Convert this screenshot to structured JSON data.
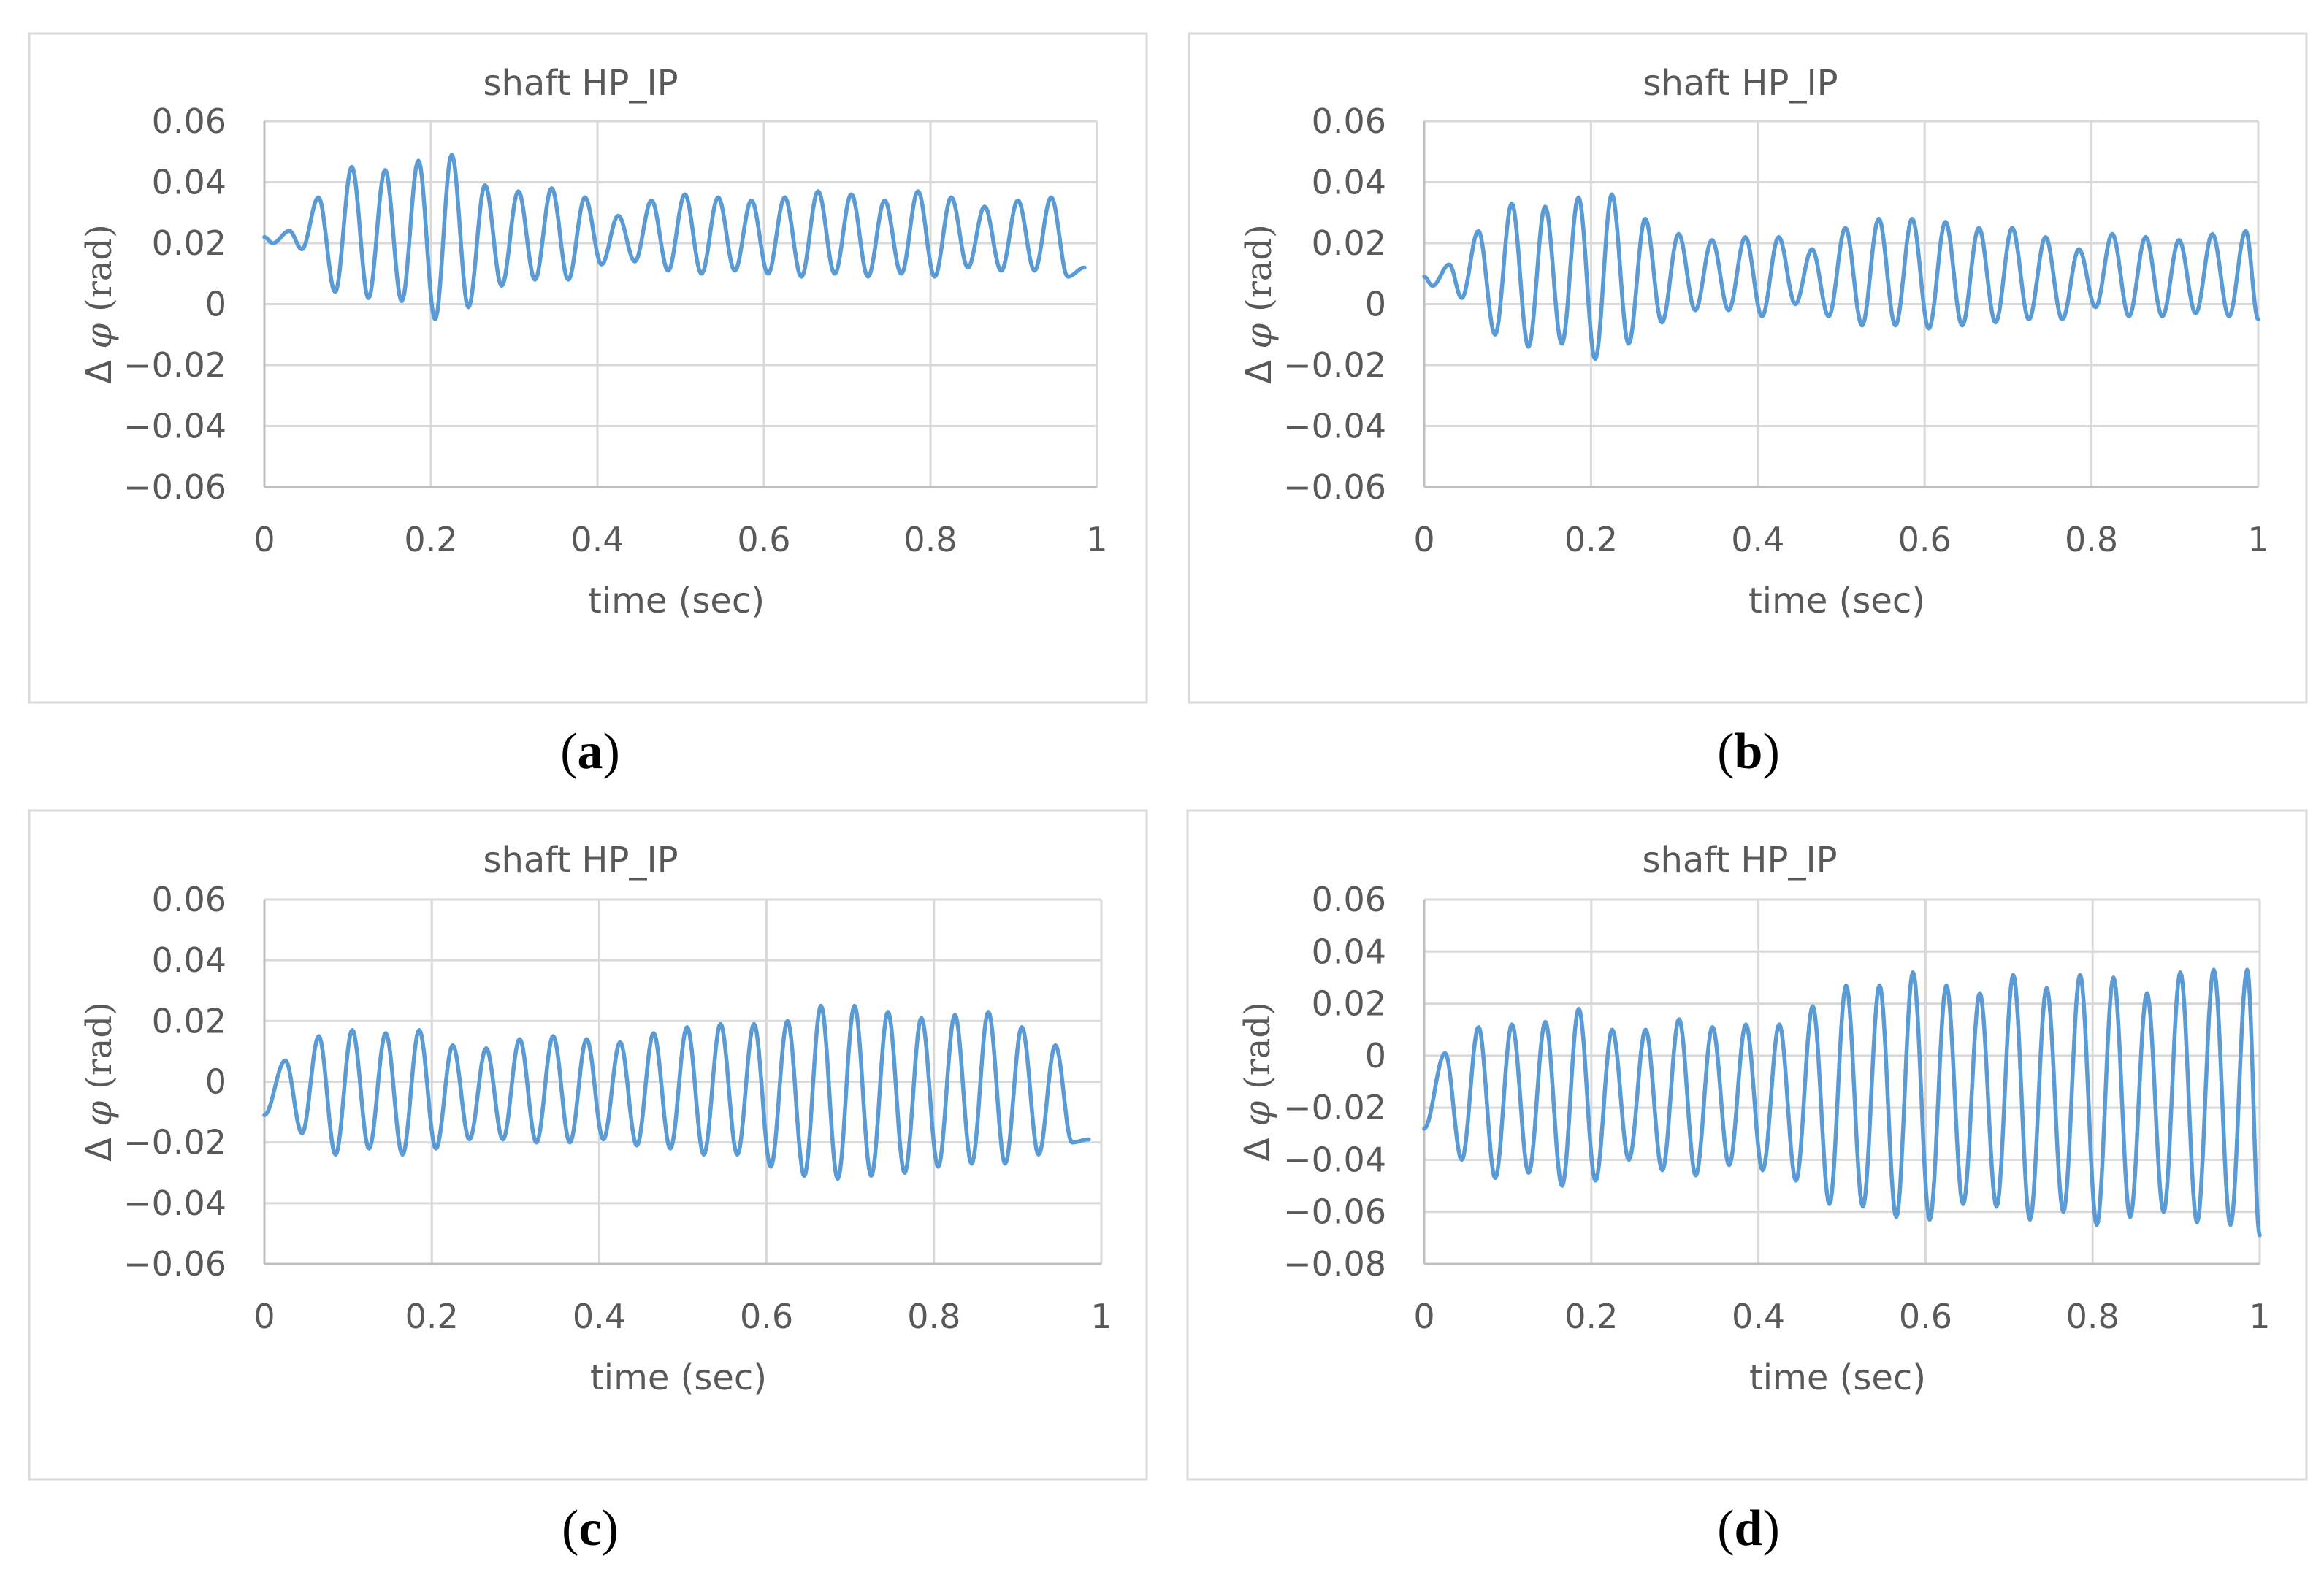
{
  "figure": {
    "colors": {
      "series": "#5b9bd5",
      "grid": "#d9d9d9",
      "text": "#595959",
      "frame": "#d9d9d9"
    }
  },
  "chart_data": [
    {
      "id": "a",
      "type": "line",
      "title": "shaft HP_IP",
      "xlabel": "time (sec)",
      "ylabel": {
        "delta": "Δ",
        "symbol": "φ",
        "unit": "(rad)"
      },
      "caption": {
        "open": "(",
        "letter": "a",
        "close": ")"
      },
      "xlim": [
        0,
        1
      ],
      "ylim": [
        -0.06,
        0.06
      ],
      "x_ticks": [
        0,
        0.2,
        0.4,
        0.6,
        0.8,
        1
      ],
      "x_tick_labels": [
        "0",
        "0.2",
        "0.4",
        "0.6",
        "0.8",
        "1"
      ],
      "y_ticks": [
        0.06,
        0.04,
        0.02,
        0,
        -0.02,
        -0.04,
        -0.06
      ],
      "y_tick_labels": [
        "0.06",
        "0.04",
        "0.02",
        "0",
        "−0.02",
        "−0.04",
        "−0.06"
      ],
      "series": [
        {
          "name": "Δφ HP_IP",
          "t_extrema": [
            0,
            0.01,
            0.03,
            0.045,
            0.065,
            0.085,
            0.105,
            0.125,
            0.145,
            0.165,
            0.185,
            0.205,
            0.225,
            0.245,
            0.265,
            0.285,
            0.305,
            0.325,
            0.345,
            0.365,
            0.385,
            0.405,
            0.425,
            0.445,
            0.465,
            0.485,
            0.505,
            0.525,
            0.545,
            0.565,
            0.585,
            0.605,
            0.625,
            0.645,
            0.665,
            0.685,
            0.705,
            0.725,
            0.745,
            0.765,
            0.785,
            0.805,
            0.825,
            0.845,
            0.865,
            0.885,
            0.905,
            0.925,
            0.945,
            0.965,
            0.985,
            1.0
          ],
          "y_extrema": [
            0.022,
            0.02,
            0.024,
            0.018,
            0.035,
            0.004,
            0.045,
            0.002,
            0.044,
            0.001,
            0.047,
            -0.005,
            0.049,
            -0.001,
            0.039,
            0.006,
            0.037,
            0.008,
            0.038,
            0.008,
            0.035,
            0.013,
            0.029,
            0.014,
            0.034,
            0.011,
            0.036,
            0.01,
            0.035,
            0.011,
            0.034,
            0.01,
            0.035,
            0.009,
            0.037,
            0.01,
            0.036,
            0.009,
            0.034,
            0.01,
            0.037,
            0.009,
            0.035,
            0.012,
            0.032,
            0.011,
            0.034,
            0.011,
            0.035,
            0.009,
            0.012
          ]
        }
      ]
    },
    {
      "id": "b",
      "type": "line",
      "title": "shaft HP_IP",
      "xlabel": "time (sec)",
      "ylabel": {
        "delta": "Δ",
        "symbol": "φ",
        "unit": "(rad)"
      },
      "caption": {
        "open": "(",
        "letter": "b",
        "close": ")"
      },
      "xlim": [
        0,
        1
      ],
      "ylim": [
        -0.06,
        0.06
      ],
      "x_ticks": [
        0,
        0.2,
        0.4,
        0.6,
        0.8,
        1
      ],
      "x_tick_labels": [
        "0",
        "0.2",
        "0.4",
        "0.6",
        "0.8",
        "1"
      ],
      "y_ticks": [
        0.06,
        0.04,
        0.02,
        0,
        -0.02,
        -0.04,
        -0.06
      ],
      "y_tick_labels": [
        "0.06",
        "0.04",
        "0.02",
        "0",
        "−0.02",
        "−0.04",
        "−0.06"
      ],
      "series": [
        {
          "name": "Δφ HP_IP",
          "t_extrema": [
            0,
            0.01,
            0.03,
            0.045,
            0.065,
            0.085,
            0.105,
            0.125,
            0.145,
            0.165,
            0.185,
            0.205,
            0.225,
            0.245,
            0.265,
            0.285,
            0.305,
            0.325,
            0.345,
            0.365,
            0.385,
            0.405,
            0.425,
            0.445,
            0.465,
            0.485,
            0.505,
            0.525,
            0.545,
            0.565,
            0.585,
            0.605,
            0.625,
            0.645,
            0.665,
            0.685,
            0.705,
            0.725,
            0.745,
            0.765,
            0.785,
            0.805,
            0.825,
            0.845,
            0.865,
            0.885,
            0.905,
            0.925,
            0.945,
            0.965,
            0.985,
            1.0
          ],
          "y_extrema": [
            0.009,
            0.006,
            0.013,
            0.002,
            0.024,
            -0.01,
            0.033,
            -0.014,
            0.032,
            -0.013,
            0.035,
            -0.018,
            0.036,
            -0.013,
            0.028,
            -0.006,
            0.023,
            -0.002,
            0.021,
            -0.002,
            0.022,
            -0.004,
            0.022,
            0.0,
            0.018,
            -0.004,
            0.025,
            -0.007,
            0.028,
            -0.007,
            0.028,
            -0.008,
            0.027,
            -0.007,
            0.025,
            -0.006,
            0.025,
            -0.005,
            0.022,
            -0.005,
            0.018,
            -0.001,
            0.023,
            -0.004,
            0.022,
            -0.004,
            0.021,
            -0.003,
            0.023,
            -0.004,
            0.024,
            -0.005
          ]
        }
      ]
    },
    {
      "id": "c",
      "type": "line",
      "title": "shaft HP_IP",
      "xlabel": "time (sec)",
      "ylabel": {
        "delta": "Δ",
        "symbol": "φ",
        "unit": "(rad)"
      },
      "caption": {
        "open": "(",
        "letter": "c",
        "close": ")"
      },
      "xlim": [
        0,
        1
      ],
      "ylim": [
        -0.06,
        0.06
      ],
      "x_ticks": [
        0,
        0.2,
        0.4,
        0.6,
        0.8,
        1
      ],
      "x_tick_labels": [
        "0",
        "0.2",
        "0.4",
        "0.6",
        "0.8",
        "1"
      ],
      "y_ticks": [
        0.06,
        0.04,
        0.02,
        0,
        -0.02,
        -0.04,
        -0.06
      ],
      "y_tick_labels": [
        "0.06",
        "0.04",
        "0.02",
        "0",
        "−0.02",
        "−0.04",
        "−0.06"
      ],
      "series": [
        {
          "name": "Δφ HP_IP",
          "t_extrema": [
            0,
            0.025,
            0.045,
            0.065,
            0.085,
            0.105,
            0.125,
            0.145,
            0.165,
            0.185,
            0.205,
            0.225,
            0.245,
            0.265,
            0.285,
            0.305,
            0.325,
            0.345,
            0.365,
            0.385,
            0.405,
            0.425,
            0.445,
            0.465,
            0.485,
            0.505,
            0.525,
            0.545,
            0.565,
            0.585,
            0.605,
            0.625,
            0.645,
            0.665,
            0.685,
            0.705,
            0.725,
            0.745,
            0.765,
            0.785,
            0.805,
            0.825,
            0.845,
            0.865,
            0.885,
            0.905,
            0.925,
            0.945,
            0.965,
            0.985,
            1.0
          ],
          "y_extrema": [
            -0.011,
            0.007,
            -0.017,
            0.015,
            -0.024,
            0.017,
            -0.022,
            0.016,
            -0.024,
            0.017,
            -0.022,
            0.012,
            -0.019,
            0.011,
            -0.019,
            0.014,
            -0.02,
            0.015,
            -0.02,
            0.014,
            -0.019,
            0.013,
            -0.021,
            0.016,
            -0.022,
            0.018,
            -0.024,
            0.019,
            -0.024,
            0.019,
            -0.028,
            0.02,
            -0.031,
            0.025,
            -0.032,
            0.025,
            -0.031,
            0.023,
            -0.03,
            0.021,
            -0.028,
            0.022,
            -0.027,
            0.023,
            -0.027,
            0.018,
            -0.024,
            0.012,
            -0.02,
            -0.019
          ]
        }
      ]
    },
    {
      "id": "d",
      "type": "line",
      "title": "shaft HP_IP",
      "xlabel": "time (sec)",
      "ylabel": {
        "delta": "Δ",
        "symbol": "φ",
        "unit": "(rad)"
      },
      "caption": {
        "open": "(",
        "letter": "d",
        "close": ")"
      },
      "xlim": [
        0,
        1
      ],
      "ylim": [
        -0.08,
        0.06
      ],
      "x_ticks": [
        0,
        0.2,
        0.4,
        0.6,
        0.8,
        1
      ],
      "x_tick_labels": [
        "0",
        "0.2",
        "0.4",
        "0.6",
        "0.8",
        "1"
      ],
      "y_ticks": [
        0.06,
        0.04,
        0.02,
        0,
        -0.02,
        -0.04,
        -0.06,
        -0.08
      ],
      "y_tick_labels": [
        "0.06",
        "0.04",
        "0.02",
        "0",
        "−0.02",
        "−0.04",
        "−0.06",
        "−0.08"
      ],
      "series": [
        {
          "name": "Δφ HP_IP",
          "t_extrema": [
            0,
            0.025,
            0.045,
            0.065,
            0.085,
            0.105,
            0.125,
            0.145,
            0.165,
            0.185,
            0.205,
            0.225,
            0.245,
            0.265,
            0.285,
            0.305,
            0.325,
            0.345,
            0.365,
            0.385,
            0.405,
            0.425,
            0.445,
            0.465,
            0.485,
            0.505,
            0.525,
            0.545,
            0.565,
            0.585,
            0.605,
            0.625,
            0.645,
            0.665,
            0.685,
            0.705,
            0.725,
            0.745,
            0.765,
            0.785,
            0.805,
            0.825,
            0.845,
            0.865,
            0.885,
            0.905,
            0.925,
            0.945,
            0.965,
            0.985,
            1.0
          ],
          "y_extrema": [
            -0.028,
            0.001,
            -0.04,
            0.011,
            -0.047,
            0.012,
            -0.045,
            0.013,
            -0.05,
            0.018,
            -0.048,
            0.01,
            -0.04,
            0.01,
            -0.044,
            0.014,
            -0.046,
            0.011,
            -0.042,
            0.012,
            -0.044,
            0.012,
            -0.048,
            0.019,
            -0.057,
            0.027,
            -0.058,
            0.027,
            -0.062,
            0.032,
            -0.063,
            0.027,
            -0.057,
            0.024,
            -0.058,
            0.031,
            -0.063,
            0.026,
            -0.06,
            0.031,
            -0.065,
            0.03,
            -0.062,
            0.024,
            -0.06,
            0.032,
            -0.064,
            0.033,
            -0.065,
            0.033,
            -0.069
          ]
        }
      ]
    }
  ]
}
